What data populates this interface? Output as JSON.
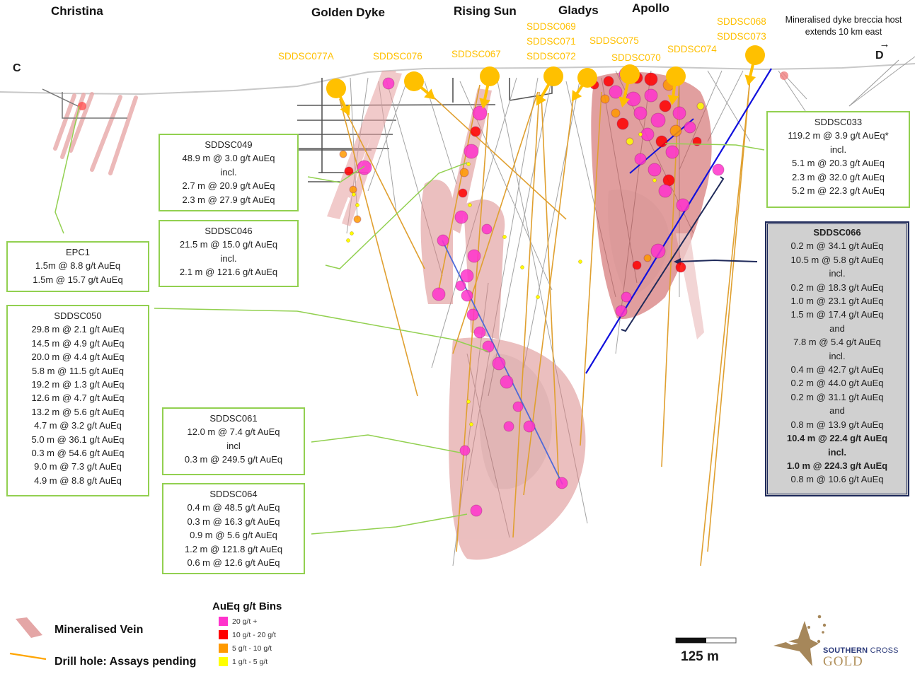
{
  "section_labels": {
    "start": "C",
    "end": "D"
  },
  "prospects": [
    "Christina",
    "Golden Dyke",
    "Rising Sun",
    "Gladys",
    "Apollo"
  ],
  "note": {
    "line1": "Mineralised dyke breccia host",
    "line2": "extends 10 km east",
    "arrow": "→"
  },
  "pending_holes": [
    "SDDSC077A",
    "SDDSC076",
    "SDDSC067",
    "SDDSC069",
    "SDDSC071",
    "SDDSC072",
    "SDDSC075",
    "SDDSC070",
    "SDDSC074",
    "SDDSC068",
    "SDDSC073"
  ],
  "intercept_boxes": {
    "sddsc049": {
      "title": "SDDSC049",
      "lines": [
        "48.9 m @ 3.0 g/t AuEq",
        "incl.",
        "2.7 m @ 20.9 g/t AuEq",
        "2.3 m @ 27.9 g/t AuEq"
      ]
    },
    "sddsc046": {
      "title": "SDDSC046",
      "lines": [
        "21.5 m @ 15.0 g/t AuEq",
        "incl.",
        "2.1 m @ 121.6 g/t AuEq"
      ]
    },
    "epc1": {
      "title": "EPC1",
      "lines": [
        "1.5m @ 8.8 g/t AuEq",
        "1.5m @ 15.7 g/t AuEq"
      ]
    },
    "sddsc050": {
      "title": "SDDSC050",
      "lines": [
        "29.8 m @ 2.1 g/t AuEq",
        "14.5 m @ 4.9 g/t AuEq",
        "20.0 m @ 4.4 g/t AuEq",
        "5.8 m @ 11.5 g/t AuEq",
        "19.2 m @ 1.3 g/t AuEq",
        "12.6 m @ 4.7 g/t AuEq",
        "13.2 m @ 5.6 g/t AuEq",
        "4.7 m @ 3.2 g/t AuEq",
        "5.0 m @ 36.1 g/t AuEq",
        "0.3 m @ 54.6 g/t AuEq",
        "9.0 m @ 7.3 g/t AuEq",
        "4.9 m @ 8.8 g/t AuEq"
      ]
    },
    "sddsc061": {
      "title": "SDDSC061",
      "lines": [
        "12.0 m @ 7.4 g/t AuEq",
        "incl",
        "0.3 m @ 249.5 g/t AuEq"
      ]
    },
    "sddsc064": {
      "title": "SDDSC064",
      "lines": [
        "0.4 m @ 48.5 g/t AuEq",
        "0.3 m @ 16.3 g/t AuEq",
        "0.9 m @ 5.6 g/t AuEq",
        "1.2 m @ 121.8 g/t AuEq",
        "0.6 m @ 12.6 g/t AuEq"
      ]
    },
    "sddsc033": {
      "title": "SDDSC033",
      "lines": [
        "119.2 m @ 3.9 g/t AuEq*",
        "incl.",
        "5.1 m @ 20.3 g/t AuEq",
        "2.3 m @ 32.0 g/t AuEq",
        "5.2 m @ 22.3 g/t AuEq"
      ]
    },
    "sddsc066": {
      "title": "SDDSC066",
      "lines": [
        "0.2 m @ 34.1 g/t AuEq",
        "10.5 m @ 5.8 g/t AuEq",
        "incl.",
        "0.2 m @ 18.3 g/t AuEq",
        "1.0 m @ 23.1 g/t AuEq",
        "1.5 m @ 17.4 g/t AuEq",
        "and",
        "7.8 m @ 5.4 g/t AuEq",
        "incl.",
        "0.4 m @ 42.7 g/t AuEq",
        "0.2 m @ 44.0 g/t AuEq",
        "0.2 m @ 31.1 g/t AuEq",
        "and",
        "0.8 m @ 13.9 g/t AuEq"
      ],
      "bold_lines": [
        "10.4 m @ 22.4 g/t AuEq",
        "incl.",
        "1.0 m @ 224.3 g/t AuEq"
      ],
      "tail_lines": [
        "0.8 m @ 10.6 g/t AuEq"
      ]
    }
  },
  "legend": {
    "vein": "Mineralised Vein",
    "pending": "Drill hole: Assays pending",
    "bins_title": "AuEq g/t Bins",
    "bins": [
      {
        "label": "20 g/t +",
        "color": "#ff33cc"
      },
      {
        "label": "10 g/t - 20 g/t",
        "color": "#ff0000"
      },
      {
        "label": "5 g/t - 10 g/t",
        "color": "#ff9900"
      },
      {
        "label": "1 g/t - 5 g/t",
        "color": "#ffff00"
      }
    ]
  },
  "scale": {
    "label": "125 m"
  },
  "logo": {
    "line1_bold": "SOUTHERN",
    "line1_rest": " CROSS",
    "line2": "GOLD"
  },
  "colors": {
    "pending_hole": "#ffc000",
    "callout_line": "#92d050",
    "vein": "#d98080",
    "highlight_hole": "#1010dd",
    "dark_box": "#1f2a5a"
  }
}
